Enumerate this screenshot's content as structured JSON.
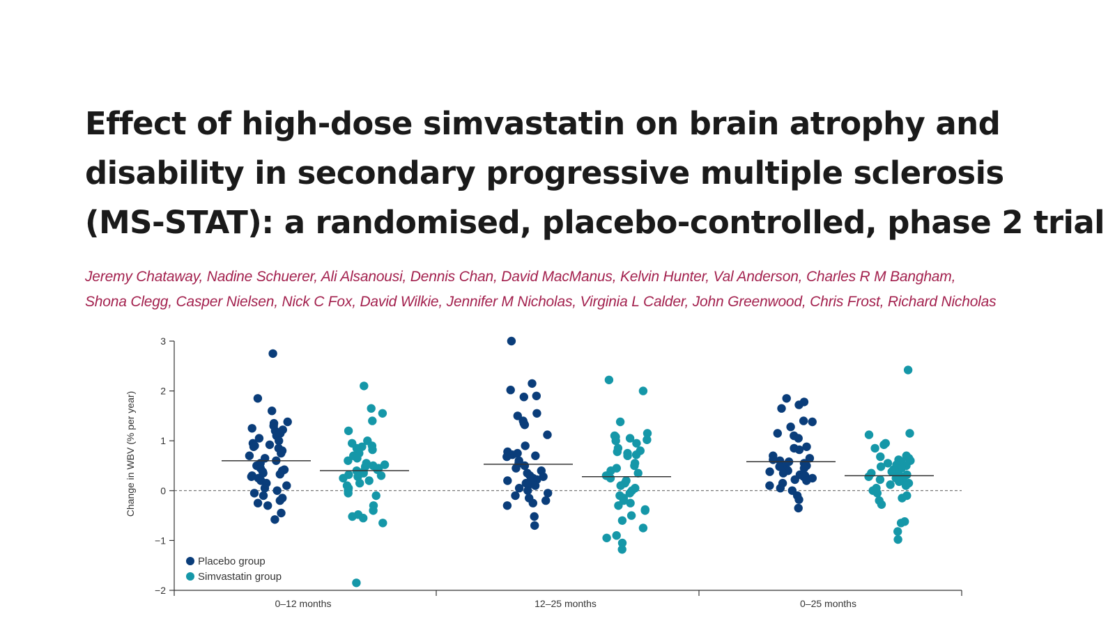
{
  "title": {
    "line1": "Effect of high-dose simvastatin on brain atrophy and",
    "line2": "disability in secondary progressive multiple sclerosis",
    "line3": "(MS-STAT): a randomised, placebo-controlled, phase 2 trial"
  },
  "authors": {
    "line1": "Jeremy Chataway, Nadine Schuerer, Ali Alsanousi, Dennis Chan, David MacManus, Kelvin Hunter, Val Anderson, Charles R M Bangham,",
    "line2": "Shona Clegg, Casper Nielsen, Nick C Fox, David Wilkie, Jennifer M Nicholas, Virginia L Calder, John Greenwood, Chris Frost, Richard Nicholas"
  },
  "chart_data": {
    "type": "scatter",
    "ylabel": "Change in WBV (% per year)",
    "ylim": [
      -2,
      3
    ],
    "yticks": [
      3,
      2,
      1,
      0,
      -1,
      -2
    ],
    "ytick_labels": [
      "3",
      "2",
      "1",
      "0",
      "−1",
      "−2"
    ],
    "categories": [
      "0–12 months",
      "12–25 months",
      "0–25 months"
    ],
    "reference_line": 0,
    "legend_position": "bottom-left",
    "colors": {
      "placebo": "#0a3d7a",
      "simvastatin": "#1597a8",
      "mean_line": "#333333",
      "axis": "#333333"
    },
    "series": [
      {
        "name": "Placebo group",
        "group": "placebo",
        "panels": [
          {
            "category": "0–12 months",
            "mean": 0.6,
            "values": [
              2.75,
              1.85,
              1.6,
              1.38,
              1.35,
              1.3,
              1.25,
              1.22,
              1.2,
              1.15,
              1.1,
              1.05,
              1.0,
              0.95,
              0.92,
              0.9,
              0.88,
              0.85,
              0.8,
              0.75,
              0.7,
              0.65,
              0.6,
              0.55,
              0.5,
              0.45,
              0.42,
              0.4,
              0.38,
              0.35,
              0.33,
              0.3,
              0.28,
              0.25,
              0.2,
              0.15,
              0.1,
              0.05,
              0.0,
              -0.05,
              -0.1,
              -0.15,
              -0.2,
              -0.25,
              -0.3,
              -0.45,
              -0.58
            ]
          },
          {
            "category": "12–25 months",
            "mean": 0.53,
            "values": [
              3.0,
              2.15,
              2.02,
              1.9,
              1.88,
              1.55,
              1.5,
              1.4,
              1.35,
              1.32,
              1.12,
              0.9,
              0.78,
              0.75,
              0.72,
              0.7,
              0.68,
              0.6,
              0.55,
              0.5,
              0.45,
              0.4,
              0.35,
              0.3,
              0.28,
              0.25,
              0.22,
              0.2,
              0.18,
              0.15,
              0.12,
              0.1,
              0.05,
              0.0,
              -0.05,
              -0.1,
              -0.15,
              -0.2,
              -0.25,
              -0.3,
              -0.52,
              -0.7
            ]
          },
          {
            "category": "0–25 months",
            "mean": 0.58,
            "values": [
              1.85,
              1.78,
              1.72,
              1.65,
              1.4,
              1.38,
              1.28,
              1.15,
              1.1,
              1.05,
              0.88,
              0.85,
              0.82,
              0.7,
              0.65,
              0.62,
              0.6,
              0.58,
              0.55,
              0.52,
              0.5,
              0.48,
              0.45,
              0.42,
              0.4,
              0.38,
              0.35,
              0.32,
              0.3,
              0.28,
              0.25,
              0.22,
              0.2,
              0.15,
              0.1,
              0.05,
              0.0,
              -0.1,
              -0.18,
              -0.35
            ]
          }
        ]
      },
      {
        "name": "Simvastatin group",
        "group": "simvastatin",
        "panels": [
          {
            "category": "0–12 months",
            "mean": 0.4,
            "values": [
              2.1,
              1.65,
              1.55,
              1.4,
              1.2,
              1.0,
              0.95,
              0.9,
              0.88,
              0.85,
              0.82,
              0.8,
              0.75,
              0.7,
              0.65,
              0.6,
              0.55,
              0.52,
              0.5,
              0.48,
              0.45,
              0.42,
              0.4,
              0.38,
              0.35,
              0.32,
              0.3,
              0.28,
              0.25,
              0.2,
              0.15,
              0.1,
              0.05,
              0.0,
              -0.05,
              -0.1,
              -0.3,
              -0.4,
              -0.48,
              -0.52,
              -0.55,
              -0.65,
              -1.85
            ]
          },
          {
            "category": "12–25 months",
            "mean": 0.28,
            "values": [
              2.22,
              2.0,
              1.38,
              1.15,
              1.1,
              1.08,
              1.05,
              1.02,
              1.0,
              0.95,
              0.85,
              0.8,
              0.78,
              0.75,
              0.72,
              0.7,
              0.55,
              0.5,
              0.45,
              0.4,
              0.35,
              0.3,
              0.25,
              0.2,
              0.15,
              0.1,
              0.05,
              0.0,
              -0.05,
              -0.1,
              -0.15,
              -0.2,
              -0.25,
              -0.3,
              -0.38,
              -0.4,
              -0.5,
              -0.6,
              -0.75,
              -0.9,
              -0.95,
              -1.05,
              -1.18
            ]
          },
          {
            "category": "0–25 months",
            "mean": 0.3,
            "values": [
              2.42,
              1.15,
              1.12,
              0.95,
              0.92,
              0.85,
              0.7,
              0.68,
              0.65,
              0.62,
              0.6,
              0.58,
              0.55,
              0.52,
              0.5,
              0.48,
              0.45,
              0.42,
              0.4,
              0.38,
              0.35,
              0.32,
              0.3,
              0.28,
              0.25,
              0.22,
              0.2,
              0.18,
              0.15,
              0.12,
              0.1,
              0.05,
              0.0,
              -0.05,
              -0.1,
              -0.15,
              -0.2,
              -0.28,
              -0.62,
              -0.65,
              -0.82,
              -0.98
            ]
          }
        ]
      }
    ]
  }
}
